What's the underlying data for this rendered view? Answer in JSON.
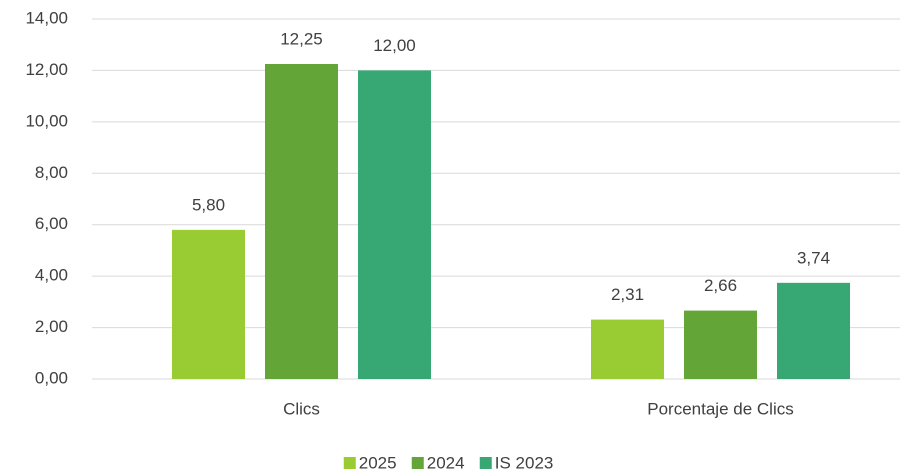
{
  "chart_data": {
    "type": "bar",
    "categories": [
      "Clics",
      "Porcentaje de Clics"
    ],
    "series": [
      {
        "name": "2025",
        "color": "#99cc33",
        "values": [
          5.8,
          2.31
        ],
        "value_labels": [
          "5,80",
          "2,31"
        ]
      },
      {
        "name": "2024",
        "color": "#63a537",
        "values": [
          12.25,
          2.66
        ],
        "value_labels": [
          "12,25",
          "2,66"
        ]
      },
      {
        "name": "IS 2023",
        "color": "#37a873",
        "values": [
          12.0,
          3.74
        ],
        "value_labels": [
          "12,00",
          "3,74"
        ]
      }
    ],
    "ylim": [
      0,
      14
    ],
    "yticks": [
      {
        "value": 0,
        "label": "0,00"
      },
      {
        "value": 2,
        "label": "2,00"
      },
      {
        "value": 4,
        "label": "4,00"
      },
      {
        "value": 6,
        "label": "6,00"
      },
      {
        "value": 8,
        "label": "8,00"
      },
      {
        "value": 10,
        "label": "10,00"
      },
      {
        "value": 12,
        "label": "12,00"
      },
      {
        "value": 14,
        "label": "14,00"
      }
    ],
    "grid": true,
    "legend": "bottom"
  }
}
